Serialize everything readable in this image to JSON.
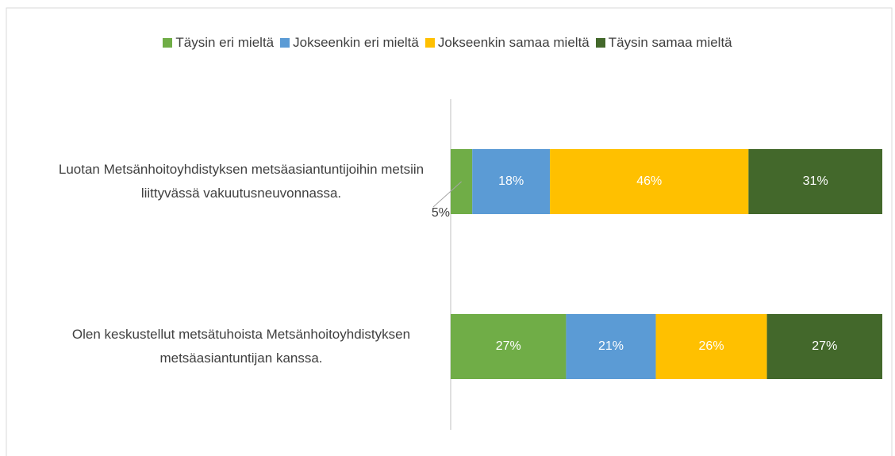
{
  "chart_data": {
    "type": "stacked_bar_horizontal",
    "categories": [
      "Luotan Metsänhoitoyhdistyksen metsäasiantuntijoihin metsiin liittyvässä vakuutusneuvonnassa.",
      "Olen keskustellut metsätuhoista Metsänhoitoyhdistyksen metsäasiantuntijan kanssa."
    ],
    "series": [
      {
        "name": "Täysin eri mieltä",
        "color": "#70ad47",
        "values": [
          5,
          27
        ],
        "value_labels": [
          "5%",
          "27%"
        ]
      },
      {
        "name": "Jokseenkin eri mieltä",
        "color": "#5b9bd5",
        "values": [
          18,
          21
        ],
        "value_labels": [
          "18%",
          "21%"
        ]
      },
      {
        "name": "Jokseenkin samaa mieltä",
        "color": "#ffc000",
        "values": [
          46,
          26
        ],
        "value_labels": [
          "46%",
          "26%"
        ]
      },
      {
        "name": "Täysin samaa mieltä",
        "color": "#43682b",
        "values": [
          31,
          27
        ],
        "value_labels": [
          "31%",
          "27%"
        ]
      }
    ],
    "legend": "top"
  }
}
